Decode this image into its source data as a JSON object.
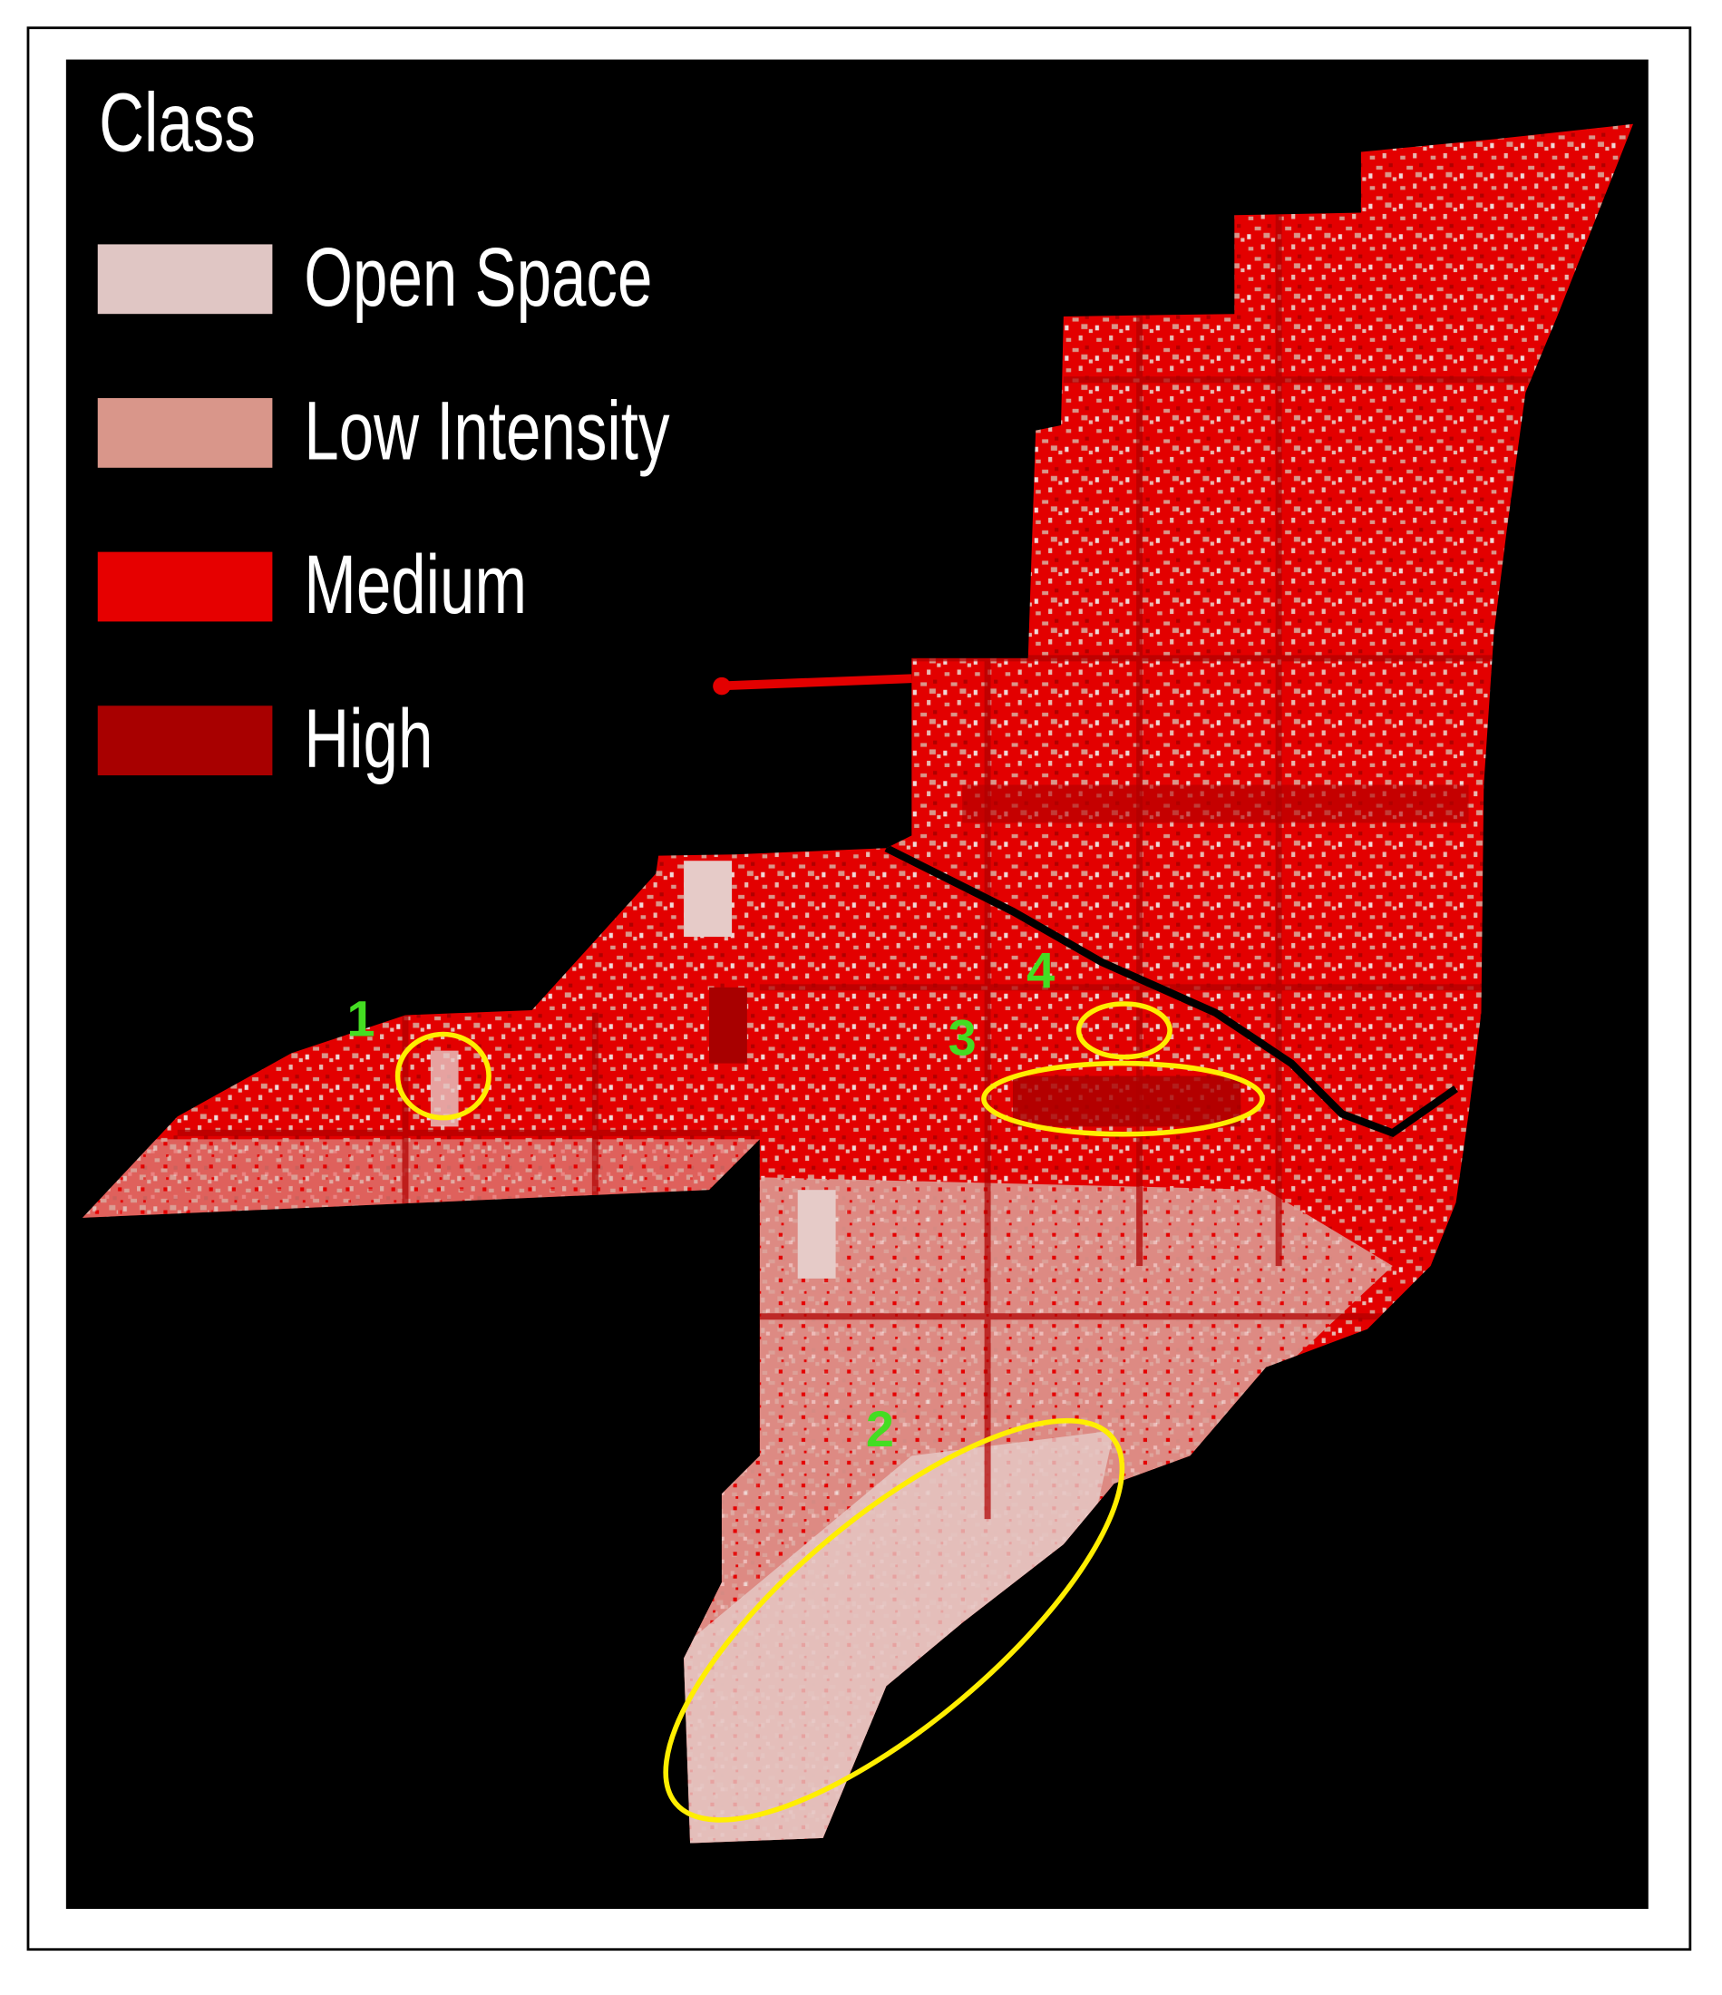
{
  "legend": {
    "title": "Class",
    "items": [
      {
        "label": "Open Space",
        "color": "#e0c6c4"
      },
      {
        "label": "Low Intensity",
        "color": "#d9968a"
      },
      {
        "label": "Medium",
        "color": "#e60000"
      },
      {
        "label": "High",
        "color": "#a80000"
      }
    ]
  },
  "annotations": [
    "1",
    "2",
    "3",
    "4"
  ]
}
